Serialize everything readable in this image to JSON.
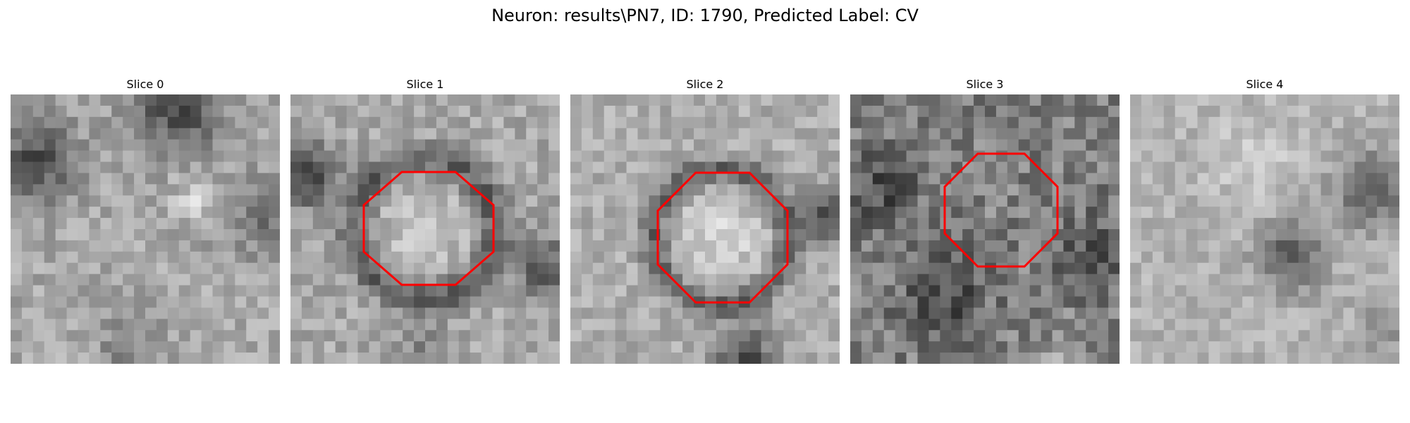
{
  "figure": {
    "title": "Neuron: results\\PN7, ID: 1790, Predicted Label: CV"
  },
  "panels": [
    {
      "title": "Slice 0",
      "has_roi": false,
      "seed": 11,
      "pattern": "slice0"
    },
    {
      "title": "Slice 1",
      "has_roi": true,
      "seed": 23,
      "pattern": "slice1"
    },
    {
      "title": "Slice 2",
      "has_roi": true,
      "seed": 37,
      "pattern": "slice2"
    },
    {
      "title": "Slice 3",
      "has_roi": true,
      "seed": 53,
      "pattern": "slice3"
    },
    {
      "title": "Slice 4",
      "has_roi": false,
      "seed": 71,
      "pattern": "slice4"
    }
  ],
  "roi_color": "#ff0000",
  "colormap": "gray",
  "grid_size": 24
}
